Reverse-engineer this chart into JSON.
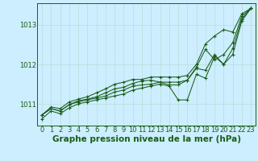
{
  "bg_color": "#cceeff",
  "grid_color": "#b8ddd8",
  "line_color": "#1a5c1a",
  "marker_color": "#1a5c1a",
  "xlabel": "Graphe pression niveau de la mer (hPa)",
  "xlabel_fontsize": 7.5,
  "tick_fontsize": 6,
  "ylim": [
    1010.45,
    1013.55
  ],
  "xlim": [
    -0.5,
    23.5
  ],
  "yticks": [
    1011,
    1012,
    1013
  ],
  "xticks": [
    0,
    1,
    2,
    3,
    4,
    5,
    6,
    7,
    8,
    9,
    10,
    11,
    12,
    13,
    14,
    15,
    16,
    17,
    18,
    19,
    20,
    21,
    22,
    23
  ],
  "series": [
    [
      1010.62,
      1010.82,
      1010.75,
      1010.9,
      1011.0,
      1011.05,
      1011.1,
      1011.15,
      1011.2,
      1011.25,
      1011.35,
      1011.4,
      1011.45,
      1011.5,
      1011.45,
      1011.1,
      1011.1,
      1011.75,
      1011.65,
      1012.2,
      1012.0,
      1012.25,
      1013.1,
      1013.42
    ],
    [
      1010.72,
      1010.88,
      1010.82,
      1010.98,
      1011.05,
      1011.1,
      1011.15,
      1011.2,
      1011.3,
      1011.35,
      1011.45,
      1011.48,
      1011.5,
      1011.55,
      1011.55,
      1011.55,
      1011.6,
      1011.9,
      1011.85,
      1012.25,
      1012.0,
      1012.4,
      1013.15,
      1013.42
    ],
    [
      1010.72,
      1010.88,
      1010.82,
      1010.98,
      1011.08,
      1011.12,
      1011.18,
      1011.28,
      1011.38,
      1011.42,
      1011.52,
      1011.58,
      1011.6,
      1011.55,
      1011.48,
      1011.48,
      1011.6,
      1011.93,
      1012.38,
      1012.12,
      1012.25,
      1012.55,
      1013.22,
      1013.42
    ],
    [
      1010.72,
      1010.92,
      1010.88,
      1011.05,
      1011.12,
      1011.18,
      1011.28,
      1011.38,
      1011.5,
      1011.55,
      1011.62,
      1011.62,
      1011.68,
      1011.68,
      1011.68,
      1011.68,
      1011.72,
      1012.0,
      1012.52,
      1012.72,
      1012.88,
      1012.82,
      1013.28,
      1013.42
    ]
  ]
}
